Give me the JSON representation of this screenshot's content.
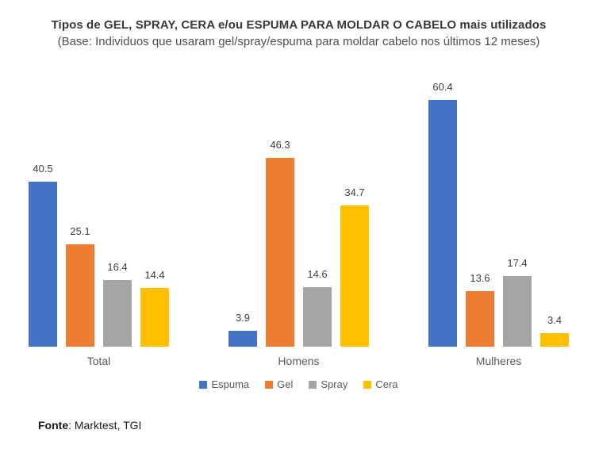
{
  "title": "Tipos de GEL, SPRAY, CERA e/ou ESPUMA PARA MOLDAR O CABELO mais utilizados",
  "subtitle": "(Base: Individuos que usaram gel/spray/espuma para moldar cabelo nos últimos 12 meses)",
  "footer": {
    "label": "Fonte",
    "text": ": Marktest, TGI"
  },
  "chart_data": {
    "type": "bar",
    "title": "Tipos de GEL, SPRAY, CERA e/ou ESPUMA PARA MOLDAR O CABELO mais utilizados",
    "subtitle": "(Base: Individuos que usaram gel/spray/espuma para moldar cabelo nos últimos 12 meses)",
    "categories": [
      "Total",
      "Homens",
      "Mulheres"
    ],
    "series": [
      {
        "name": "Espuma",
        "color": "#4472C4",
        "values": [
          40.5,
          3.9,
          60.4
        ]
      },
      {
        "name": "Gel",
        "color": "#ED7D31",
        "values": [
          25.1,
          46.3,
          13.6
        ]
      },
      {
        "name": "Spray",
        "color": "#A5A5A5",
        "values": [
          16.4,
          14.6,
          17.4
        ]
      },
      {
        "name": "Cera",
        "color": "#FFC000",
        "values": [
          14.4,
          34.7,
          3.4
        ]
      }
    ],
    "xlabel": "",
    "ylabel": "",
    "ylim": [
      0,
      67
    ],
    "grid": false,
    "axis_lines": false,
    "value_labels": true,
    "value_label_decimals": 1,
    "legend_position": "bottom",
    "source_note": "Fonte: Marktest, TGI"
  }
}
